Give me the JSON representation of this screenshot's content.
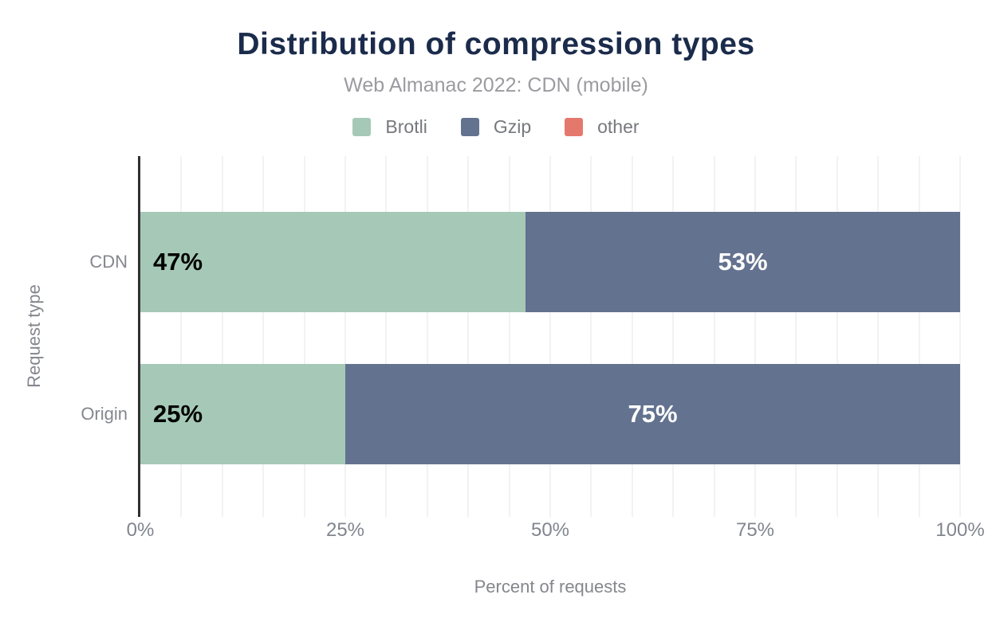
{
  "header": {
    "title": "Distribution of compression types",
    "subtitle": "Web Almanac 2022: CDN (mobile)"
  },
  "legend": {
    "position": "top",
    "items": [
      {
        "label": "Brotli",
        "color": "#a5c9b6"
      },
      {
        "label": "Gzip",
        "color": "#63728f"
      },
      {
        "label": "other",
        "color": "#e5786d"
      }
    ]
  },
  "chart_data": {
    "type": "bar",
    "orientation": "horizontal",
    "stacked": true,
    "title": "Distribution of compression types",
    "subtitle": "Web Almanac 2022: CDN (mobile)",
    "categories": [
      "CDN",
      "Origin"
    ],
    "series": [
      {
        "name": "Brotli",
        "color": "#a5c9b6",
        "label_color": "#000000",
        "label_align": "start",
        "values": [
          47,
          25
        ]
      },
      {
        "name": "Gzip",
        "color": "#63728f",
        "label_color": "#ffffff",
        "label_align": "center",
        "values": [
          53,
          75
        ]
      },
      {
        "name": "other",
        "color": "#e5786d",
        "label_color": "#ffffff",
        "label_align": "center",
        "values": [
          0,
          0
        ]
      }
    ],
    "value_suffix": "%",
    "xlabel": "Percent of requests",
    "ylabel": "Request type",
    "xlim": [
      0,
      100
    ],
    "xticks": [
      {
        "label": "0%",
        "value": 0
      },
      {
        "label": "25%",
        "value": 25
      },
      {
        "label": "50%",
        "value": 50
      },
      {
        "label": "75%",
        "value": 75
      },
      {
        "label": "100%",
        "value": 100
      }
    ],
    "grid": {
      "vertical_minor_step": 5,
      "color": "#f2f2f4"
    },
    "legend_position": "top"
  },
  "colors": {
    "title": "#1b2b4b",
    "subtitle": "#9b9ba0",
    "axis_text": "#85878e",
    "axis_line": "#303034",
    "background": "#ffffff"
  }
}
